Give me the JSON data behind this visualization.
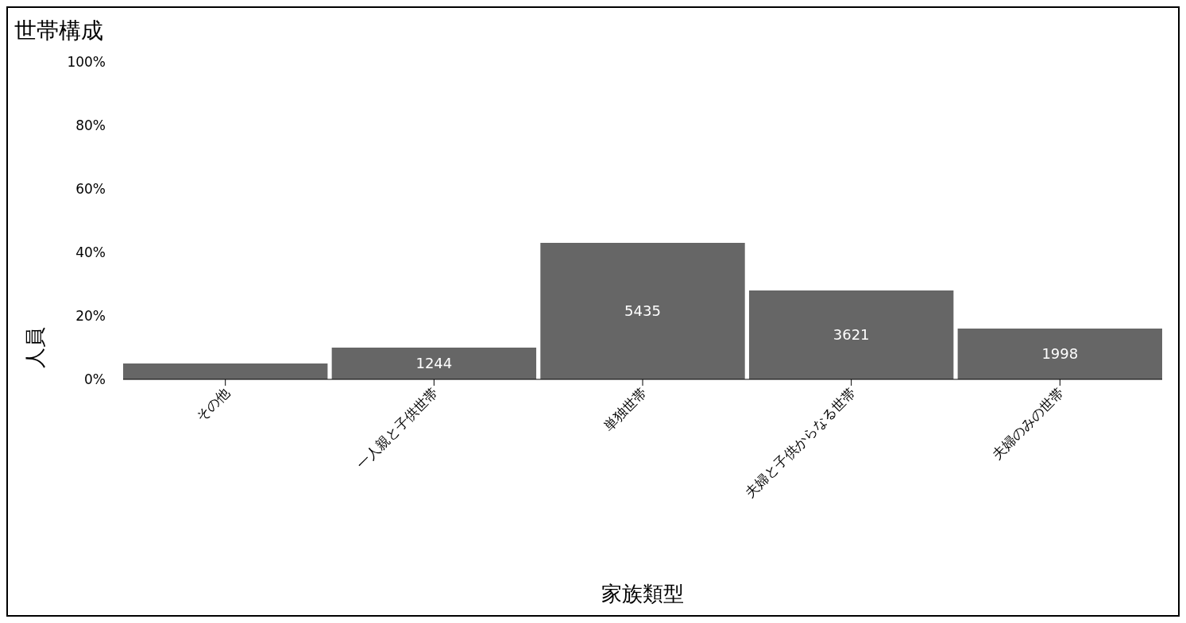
{
  "chart_data": {
    "type": "bar",
    "title": "世帯構成",
    "xlabel": "家族類型",
    "ylabel": "人員",
    "categories": [
      "その他",
      "一人親と子供世帯",
      "単独世帯",
      "夫婦と子供からなる世帯",
      "夫婦のみの世帯"
    ],
    "values": [
      5,
      10,
      43,
      28,
      16
    ],
    "annotations": [
      "1244",
      "5435",
      "3621",
      "1998"
    ],
    "color": "#666666",
    "ylim": [
      0,
      100
    ],
    "yticks": [
      {
        "value": 0,
        "label": "0%"
      },
      {
        "value": 20,
        "label": "20%"
      },
      {
        "value": 40,
        "label": "40%"
      },
      {
        "value": 60,
        "label": "60%"
      },
      {
        "value": 80,
        "label": "80%"
      },
      {
        "value": 100,
        "label": "100%"
      }
    ]
  }
}
